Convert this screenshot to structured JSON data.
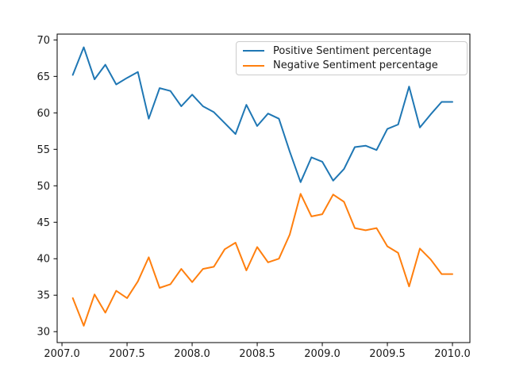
{
  "chart_data": {
    "type": "line",
    "title": "",
    "xlabel": "",
    "ylabel": "",
    "x": [
      2007.083,
      2007.167,
      2007.25,
      2007.333,
      2007.417,
      2007.5,
      2007.583,
      2007.667,
      2007.75,
      2007.833,
      2007.917,
      2008.0,
      2008.083,
      2008.167,
      2008.25,
      2008.333,
      2008.417,
      2008.5,
      2008.583,
      2008.667,
      2008.75,
      2008.833,
      2008.917,
      2009.0,
      2009.083,
      2009.167,
      2009.25,
      2009.333,
      2009.417,
      2009.5,
      2009.583,
      2009.667,
      2009.75,
      2009.833,
      2009.917,
      2010.0
    ],
    "series": [
      {
        "name": "Positive Sentiment percentage",
        "color": "#1f77b4",
        "values": [
          65.2,
          69.0,
          64.6,
          66.6,
          63.9,
          64.8,
          65.6,
          59.2,
          63.4,
          63.0,
          60.9,
          62.5,
          60.9,
          60.1,
          58.6,
          57.1,
          61.1,
          58.2,
          59.9,
          59.2,
          54.7,
          50.5,
          53.9,
          53.3,
          50.7,
          52.3,
          55.3,
          55.5,
          54.9,
          57.8,
          58.4,
          63.6,
          58.0,
          59.8,
          61.5,
          61.5
        ]
      },
      {
        "name": "Negative Sentiment percentage",
        "color": "#ff7f0e",
        "values": [
          34.6,
          30.8,
          35.1,
          32.6,
          35.6,
          34.6,
          36.9,
          40.2,
          36.0,
          36.5,
          38.6,
          36.8,
          38.6,
          38.9,
          41.3,
          42.2,
          38.4,
          41.6,
          39.5,
          40.0,
          43.3,
          48.9,
          45.8,
          46.1,
          48.8,
          47.8,
          44.2,
          43.9,
          44.2,
          41.7,
          40.8,
          36.2,
          41.4,
          39.9,
          37.9,
          37.9
        ]
      }
    ],
    "xlim": [
      2006.963,
      2010.134
    ],
    "ylim": [
      28.5,
      70.8
    ],
    "xticks": {
      "values": [
        2007.0,
        2007.5,
        2008.0,
        2008.5,
        2009.0,
        2009.5,
        2010.0
      ],
      "labels": [
        "2007.0",
        "2007.5",
        "2008.0",
        "2008.5",
        "2009.0",
        "2009.5",
        "2010.0"
      ]
    },
    "yticks": {
      "values": [
        30,
        35,
        40,
        45,
        50,
        55,
        60,
        65,
        70
      ],
      "labels": [
        "30",
        "35",
        "40",
        "45",
        "50",
        "55",
        "60",
        "65",
        "70"
      ]
    },
    "grid": false,
    "legend": {
      "position": "upper right",
      "entries": [
        "Positive Sentiment percentage",
        "Negative Sentiment percentage"
      ]
    }
  },
  "colors": {
    "axis": "#000000",
    "tick_text": "#1a1a1a",
    "legend_border": "#cccccc",
    "background": "#ffffff"
  }
}
